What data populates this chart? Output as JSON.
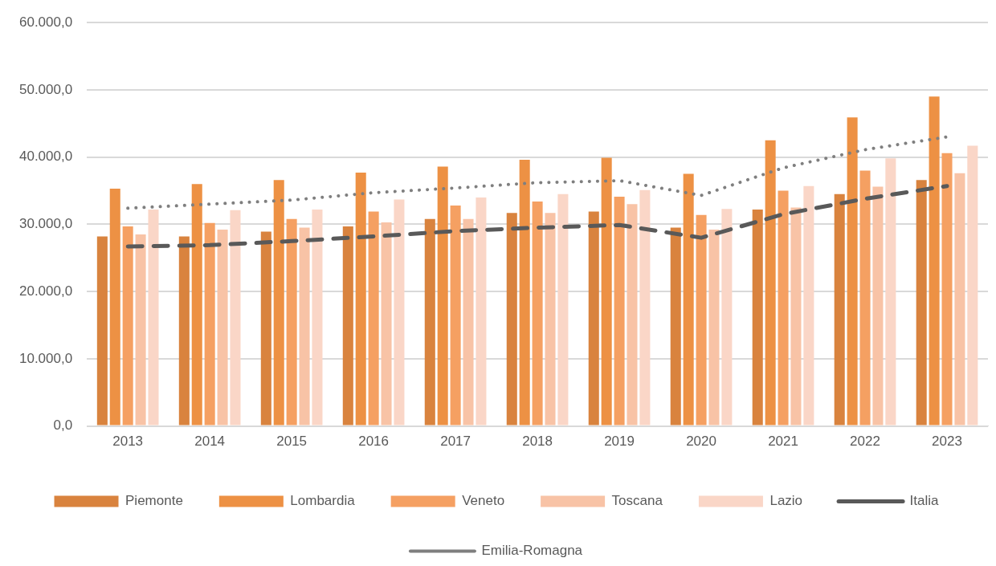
{
  "chart_data": {
    "type": "bar",
    "categories": [
      "2013",
      "2014",
      "2015",
      "2016",
      "2017",
      "2018",
      "2019",
      "2020",
      "2021",
      "2022",
      "2023"
    ],
    "series": [
      {
        "name": "Piemonte",
        "color": "#d9833e",
        "values": [
          28200,
          28200,
          28900,
          29700,
          30800,
          31700,
          31900,
          29500,
          32200,
          34500,
          36600
        ]
      },
      {
        "name": "Lombardia",
        "color": "#ed9144",
        "values": [
          35300,
          36000,
          36600,
          37700,
          38600,
          39600,
          39900,
          37500,
          42500,
          45900,
          49000
        ]
      },
      {
        "name": "Veneto",
        "color": "#f5a062",
        "values": [
          29700,
          30200,
          30800,
          31900,
          32800,
          33400,
          34100,
          31400,
          35000,
          38000,
          40600
        ]
      },
      {
        "name": "Toscana",
        "color": "#f8c3a6",
        "values": [
          28500,
          29200,
          29500,
          30300,
          30800,
          31700,
          33000,
          29200,
          32500,
          35600,
          37600
        ]
      },
      {
        "name": "Lazio",
        "color": "#fad6c7",
        "values": [
          32200,
          32100,
          32200,
          33700,
          34000,
          34500,
          35100,
          32300,
          35700,
          39800,
          41700
        ]
      },
      {
        "name": "Italia",
        "type": "line",
        "line_style": "dashed",
        "color": "#595959",
        "values": [
          26700,
          26900,
          27500,
          28200,
          29000,
          29500,
          29900,
          28000,
          31500,
          33800,
          35700
        ]
      },
      {
        "name": "Emilia-Romagna",
        "type": "line",
        "line_style": "dotted",
        "color": "#7f7f7f",
        "values": [
          32400,
          33000,
          33600,
          34700,
          35400,
          36200,
          36500,
          34300,
          38400,
          41100,
          43000
        ]
      }
    ],
    "ylim": [
      0,
      60000
    ],
    "yticks": [
      {
        "value": 0,
        "label": "0,0"
      },
      {
        "value": 10000,
        "label": "10.000,0"
      },
      {
        "value": 20000,
        "label": "20.000,0"
      },
      {
        "value": 30000,
        "label": "30.000,0"
      },
      {
        "value": 40000,
        "label": "40.000,0"
      },
      {
        "value": 50000,
        "label": "50.000,0"
      },
      {
        "value": 60000,
        "label": "60.000,0"
      }
    ],
    "grid": "y",
    "legend": "bottom",
    "marker": "none"
  }
}
